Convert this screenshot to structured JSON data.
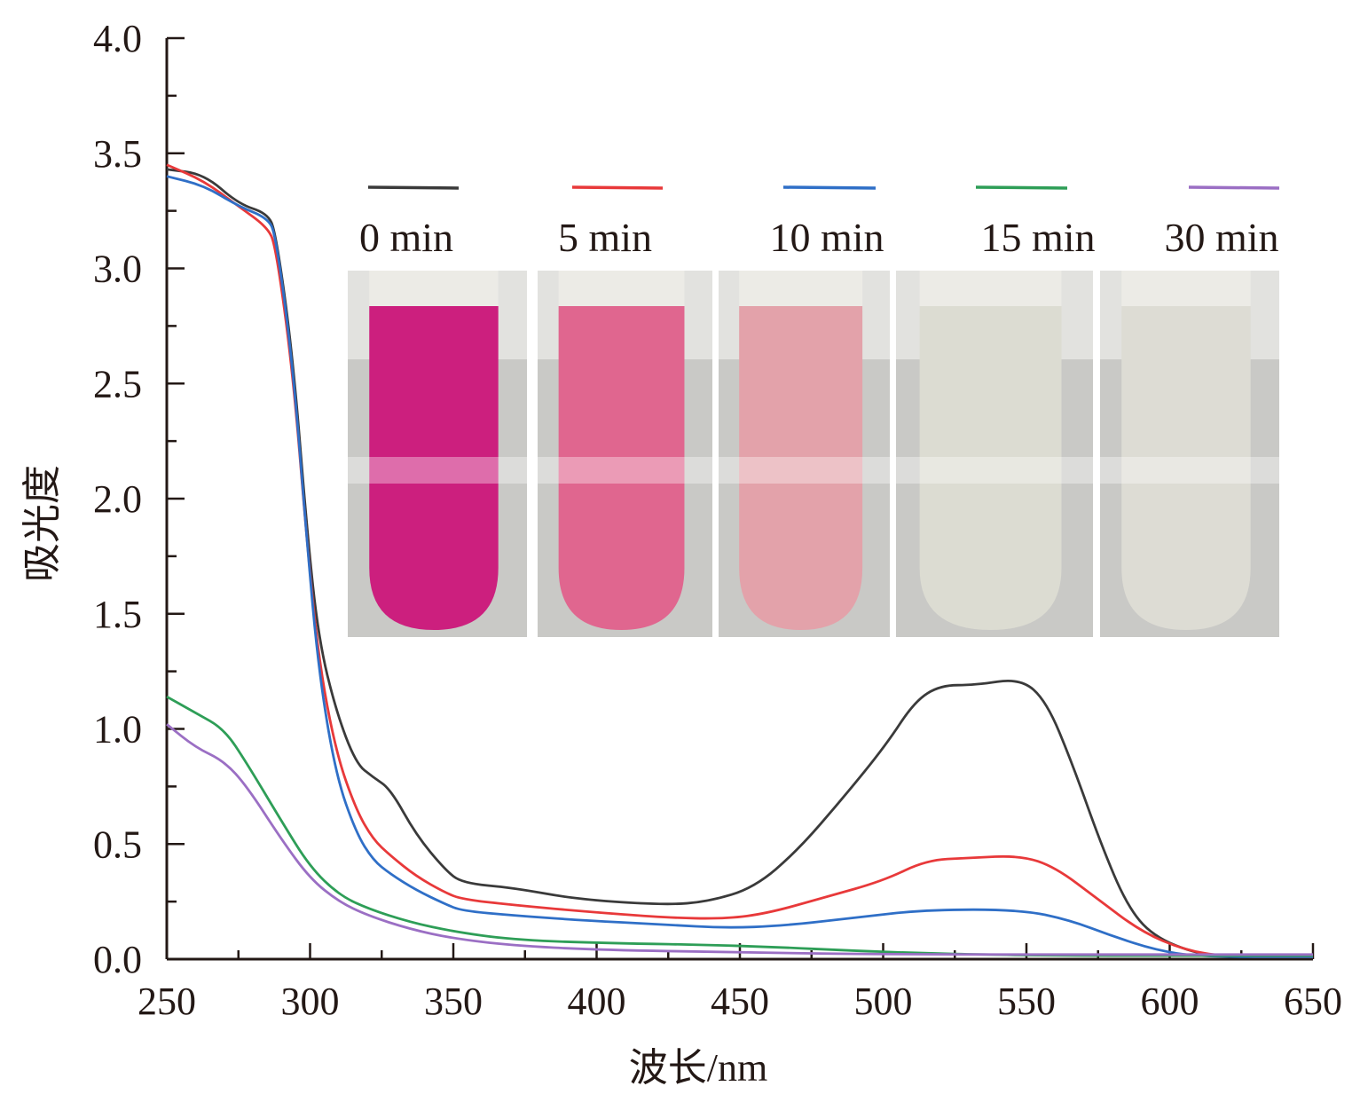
{
  "chart_data": {
    "type": "line",
    "title": "",
    "xlabel": "波长/nm",
    "ylabel": "吸光度",
    "xlim": [
      250,
      650
    ],
    "ylim": [
      0,
      4.0
    ],
    "xticks": [
      "250",
      "300",
      "350",
      "400",
      "450",
      "500",
      "550",
      "600",
      "650"
    ],
    "yticks": [
      "0.0",
      "0.5",
      "1.0",
      "1.5",
      "2.0",
      "2.5",
      "3.0",
      "3.5",
      "4.0"
    ],
    "grid": false,
    "legend_position": "top-right",
    "series": [
      {
        "name": "0 min",
        "color": "#3a3a3a",
        "x": [
          250,
          263,
          275,
          285,
          288,
          294,
          299,
          303,
          309,
          316,
          322,
          328,
          337,
          347,
          353,
          371,
          393,
          424,
          439,
          455,
          470,
          486,
          501,
          511,
          520,
          532,
          548,
          557,
          566,
          576,
          585,
          594,
          610,
          625,
          650
        ],
        "y": [
          3.43,
          3.41,
          3.28,
          3.24,
          3.16,
          2.62,
          1.85,
          1.39,
          1.08,
          0.85,
          0.79,
          0.74,
          0.54,
          0.39,
          0.33,
          0.31,
          0.26,
          0.235,
          0.25,
          0.31,
          0.47,
          0.7,
          0.93,
          1.12,
          1.19,
          1.19,
          1.22,
          1.12,
          0.85,
          0.5,
          0.235,
          0.1,
          0.02,
          0.01,
          0.01
        ]
      },
      {
        "name": "5 min",
        "color": "#e8393a",
        "x": [
          250,
          263,
          275,
          285,
          288,
          294,
          299,
          303,
          309,
          316,
          322,
          328,
          337,
          347,
          353,
          371,
          393,
          424,
          445,
          460,
          480,
          500,
          515,
          530,
          548,
          560,
          575,
          590,
          605,
          620,
          650
        ],
        "y": [
          3.45,
          3.38,
          3.27,
          3.18,
          3.1,
          2.55,
          1.8,
          1.3,
          0.9,
          0.65,
          0.52,
          0.45,
          0.36,
          0.29,
          0.26,
          0.235,
          0.21,
          0.18,
          0.175,
          0.2,
          0.27,
          0.34,
          0.43,
          0.44,
          0.45,
          0.4,
          0.26,
          0.12,
          0.04,
          0.01,
          0.01
        ]
      },
      {
        "name": "10 min",
        "color": "#2f6fc7",
        "x": [
          250,
          263,
          275,
          285,
          288,
          294,
          299,
          303,
          309,
          316,
          322,
          328,
          337,
          347,
          353,
          371,
          393,
          424,
          445,
          465,
          490,
          515,
          548,
          565,
          580,
          595,
          610,
          650
        ],
        "y": [
          3.4,
          3.36,
          3.27,
          3.22,
          3.15,
          2.58,
          1.8,
          1.25,
          0.8,
          0.55,
          0.43,
          0.37,
          0.3,
          0.24,
          0.21,
          0.19,
          0.17,
          0.15,
          0.135,
          0.145,
          0.18,
          0.215,
          0.215,
          0.17,
          0.1,
          0.04,
          0.01,
          0.01
        ]
      },
      {
        "name": "15 min",
        "color": "#2e9e57",
        "x": [
          250,
          260,
          270,
          278,
          290,
          300,
          310,
          320,
          335,
          350,
          370,
          400,
          450,
          500,
          550,
          650
        ],
        "y": [
          1.14,
          1.07,
          1.0,
          0.85,
          0.6,
          0.4,
          0.28,
          0.22,
          0.16,
          0.12,
          0.085,
          0.07,
          0.06,
          0.03,
          0.015,
          0.015
        ]
      },
      {
        "name": "30 min",
        "color": "#9b6fc4",
        "x": [
          250,
          260,
          270,
          278,
          290,
          300,
          310,
          320,
          335,
          350,
          370,
          400,
          450,
          500,
          650
        ],
        "y": [
          1.02,
          0.92,
          0.86,
          0.75,
          0.52,
          0.35,
          0.25,
          0.19,
          0.13,
          0.09,
          0.06,
          0.04,
          0.03,
          0.02,
          0.02
        ]
      }
    ],
    "inset_photos": [
      {
        "label": "0 min",
        "liquid": "#cc1f7e"
      },
      {
        "label": "5 min",
        "liquid": "#e0668f"
      },
      {
        "label": "10 min",
        "liquid": "#e3a2aa"
      },
      {
        "label": "15 min",
        "liquid": "#dcdcd2"
      },
      {
        "label": "30 min",
        "liquid": "#dddcd4"
      }
    ]
  }
}
